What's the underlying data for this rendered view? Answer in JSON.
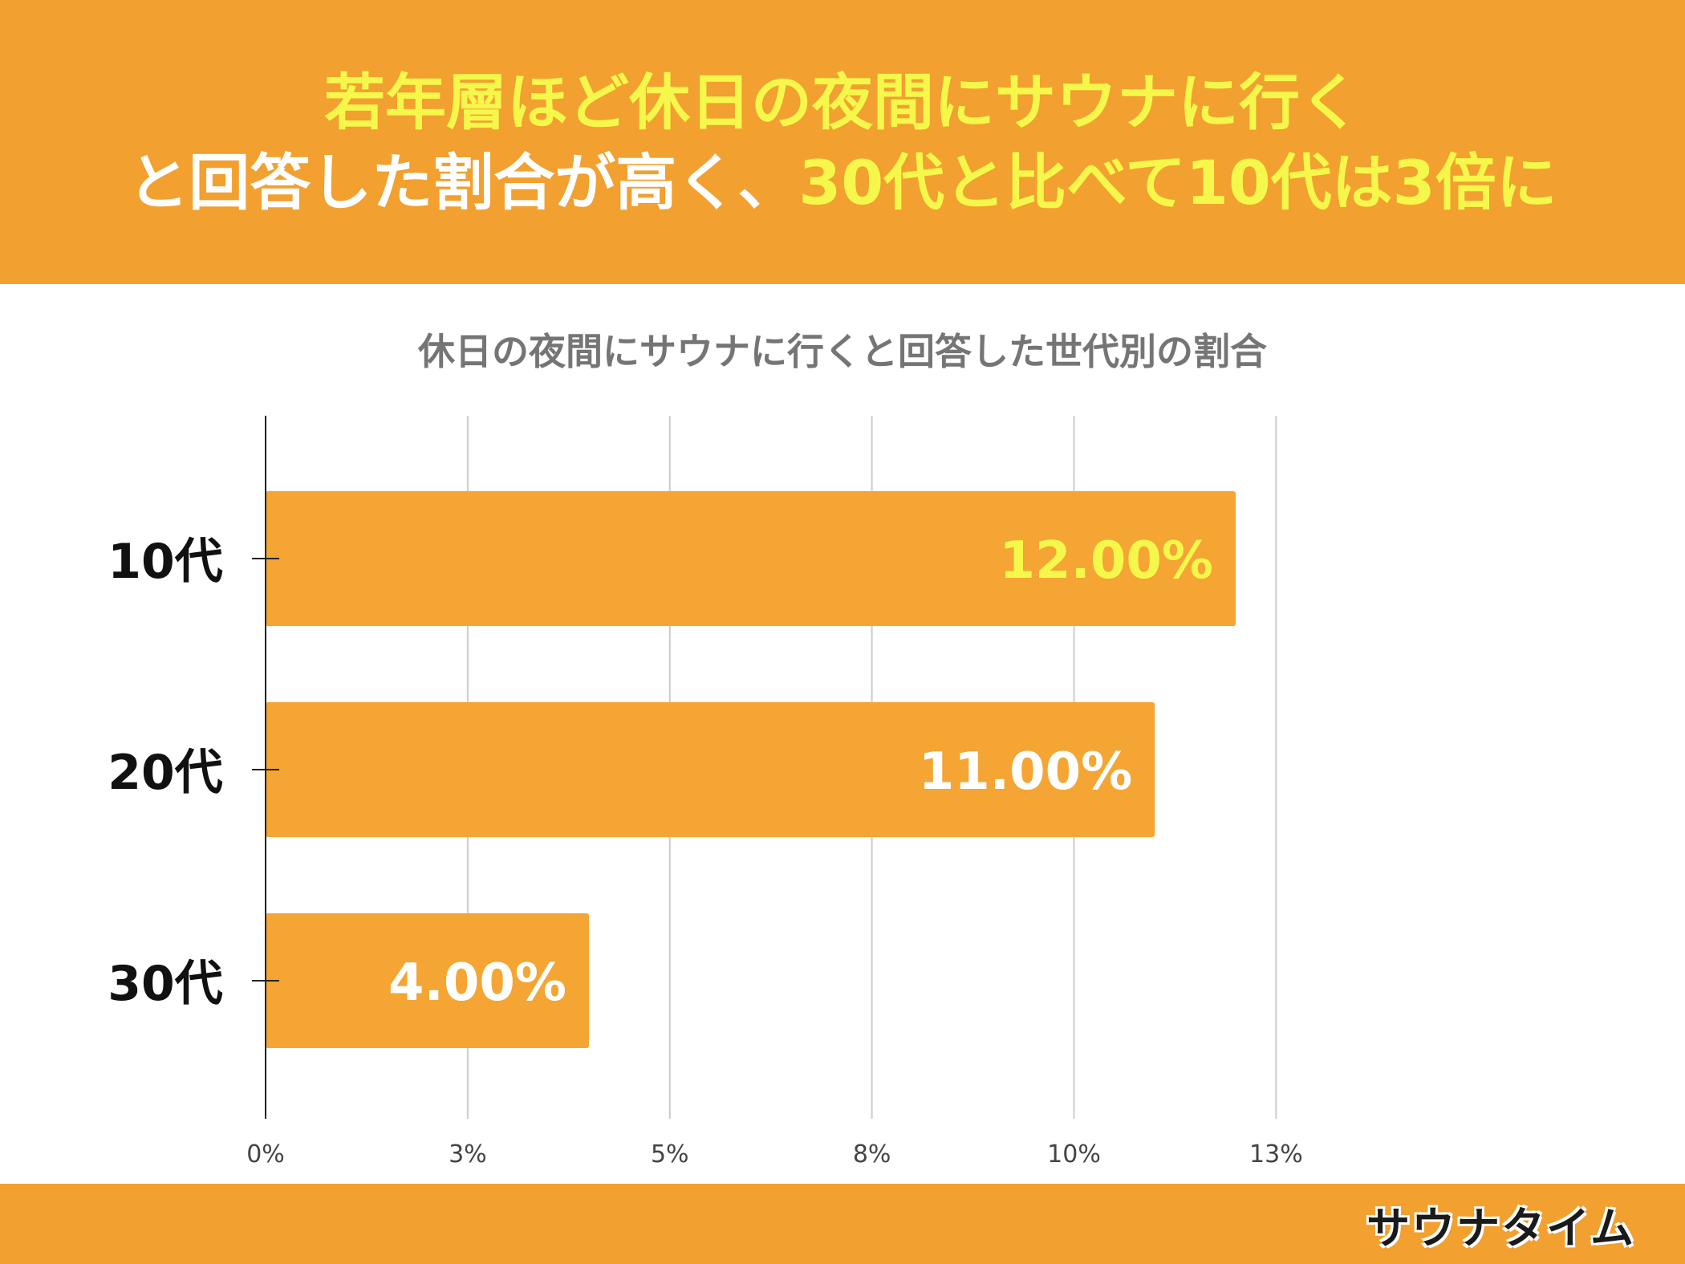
{
  "headline": {
    "line1": "若年層ほど休日の夜間にサウナに行く",
    "line2_white": "と回答した割合が高く、",
    "line2_yellow": "30代と比べて10代は3倍に"
  },
  "colors": {
    "accent": "#f2a030",
    "bar": "#f4a533",
    "headline_yellow": "#f5f84a",
    "label_highlight": "#f5f84a",
    "label_default": "#ffffff"
  },
  "chart_data": {
    "type": "bar",
    "orientation": "horizontal",
    "title": "休日の夜間にサウナに行くと回答した世代別の割合",
    "categories": [
      "10代",
      "20代",
      "30代"
    ],
    "values": [
      12.0,
      11.0,
      4.0
    ],
    "data_labels": [
      "12.00%",
      "11.00%",
      "4.00%"
    ],
    "x_tick_labels": [
      "0%",
      "3%",
      "5%",
      "8%",
      "10%",
      "13%"
    ],
    "xlim": [
      0,
      12.5
    ],
    "grid": true,
    "xlabel": "",
    "ylabel": ""
  },
  "logo": {
    "text": "サウナタイム",
    "icon": "sauna-hat-icon"
  }
}
